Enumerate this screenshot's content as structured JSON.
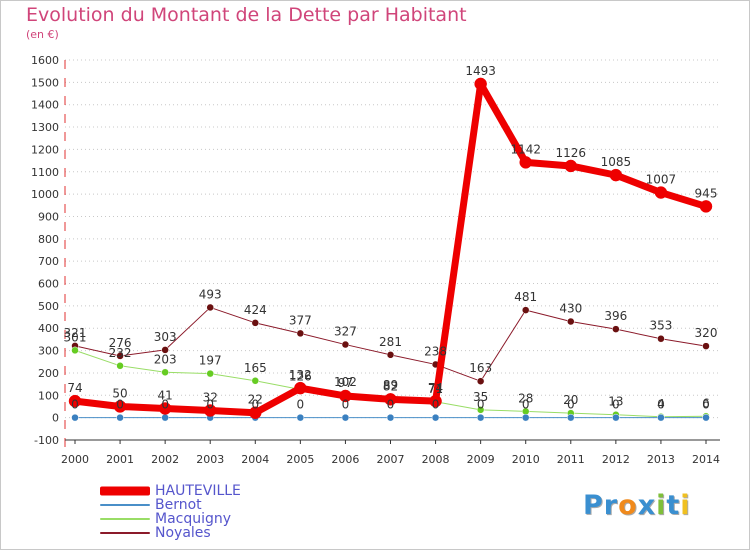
{
  "title": "Evolution du Montant de la Dette par Habitant",
  "subtitle": "(en €)",
  "logo": {
    "text": "Proxiti",
    "colors": [
      "#3a8fd0",
      "#3a8fd0",
      "#f08a1c",
      "#3a8fd0",
      "#7fbf3a",
      "#3a8fd0",
      "#f0c020"
    ]
  },
  "chart_data": {
    "type": "line",
    "x": [
      "2000",
      "2001",
      "2002",
      "2003",
      "2004",
      "2005",
      "2006",
      "2007",
      "2008",
      "2009",
      "2010",
      "2011",
      "2012",
      "2013",
      "2014"
    ],
    "ylim": [
      -100,
      1600
    ],
    "yticks": [
      -100,
      0,
      100,
      200,
      300,
      400,
      500,
      600,
      700,
      800,
      900,
      1000,
      1100,
      1200,
      1300,
      1400,
      1500,
      1600
    ],
    "grid": "horizontal dotted",
    "legend_position": "bottom-left",
    "series": [
      {
        "name": "Noyales",
        "color": "#8b1a2a",
        "marker_color": "#6a1010",
        "width": 1,
        "values": [
          321,
          276,
          303,
          493,
          424,
          377,
          327,
          281,
          238,
          163,
          481,
          430,
          396,
          353,
          320
        ],
        "labels": [
          "321",
          "276",
          "303",
          "493",
          "424",
          "377",
          "327",
          "281",
          "238",
          "163",
          "481",
          "430",
          "396",
          "353",
          "320"
        ]
      },
      {
        "name": "Macquigny",
        "color": "#99dd66",
        "marker_color": "#66cc22",
        "width": 1,
        "values": [
          301,
          232,
          203,
          197,
          165,
          126,
          102,
          89,
          71,
          35,
          28,
          20,
          13,
          4,
          6
        ],
        "labels": [
          "301",
          "232",
          "203",
          "197",
          "165",
          "126",
          "102",
          "89",
          "71",
          "35",
          "28",
          "20",
          "13",
          "4",
          "6"
        ]
      },
      {
        "name": "Bernot",
        "color": "#4a8fc8",
        "marker_color": "#3a80c0",
        "width": 1,
        "values": [
          0,
          0,
          0,
          0,
          0,
          0,
          0,
          0,
          0,
          0,
          0,
          0,
          0,
          0,
          0
        ],
        "labels": [
          "0",
          "0",
          "0",
          "0",
          "0",
          "0",
          "0",
          "0",
          "0",
          "0",
          "0",
          "0",
          "0",
          "0",
          "0"
        ]
      },
      {
        "name": "HAUTEVILLE",
        "color": "#ee0000",
        "marker_color": "#ee0000",
        "width": 7,
        "values": [
          74,
          50,
          41,
          32,
          22,
          132,
          97,
          82,
          74,
          1493,
          1142,
          1126,
          1085,
          1007,
          945
        ],
        "labels": [
          "74",
          "50",
          "41",
          "32",
          "22",
          "132",
          "97",
          "82",
          "74",
          "1493",
          "1142",
          "1126",
          "1085",
          "1007",
          "945"
        ]
      }
    ],
    "legend_order": [
      "HAUTEVILLE",
      "Bernot",
      "Macquigny",
      "Noyales"
    ]
  }
}
